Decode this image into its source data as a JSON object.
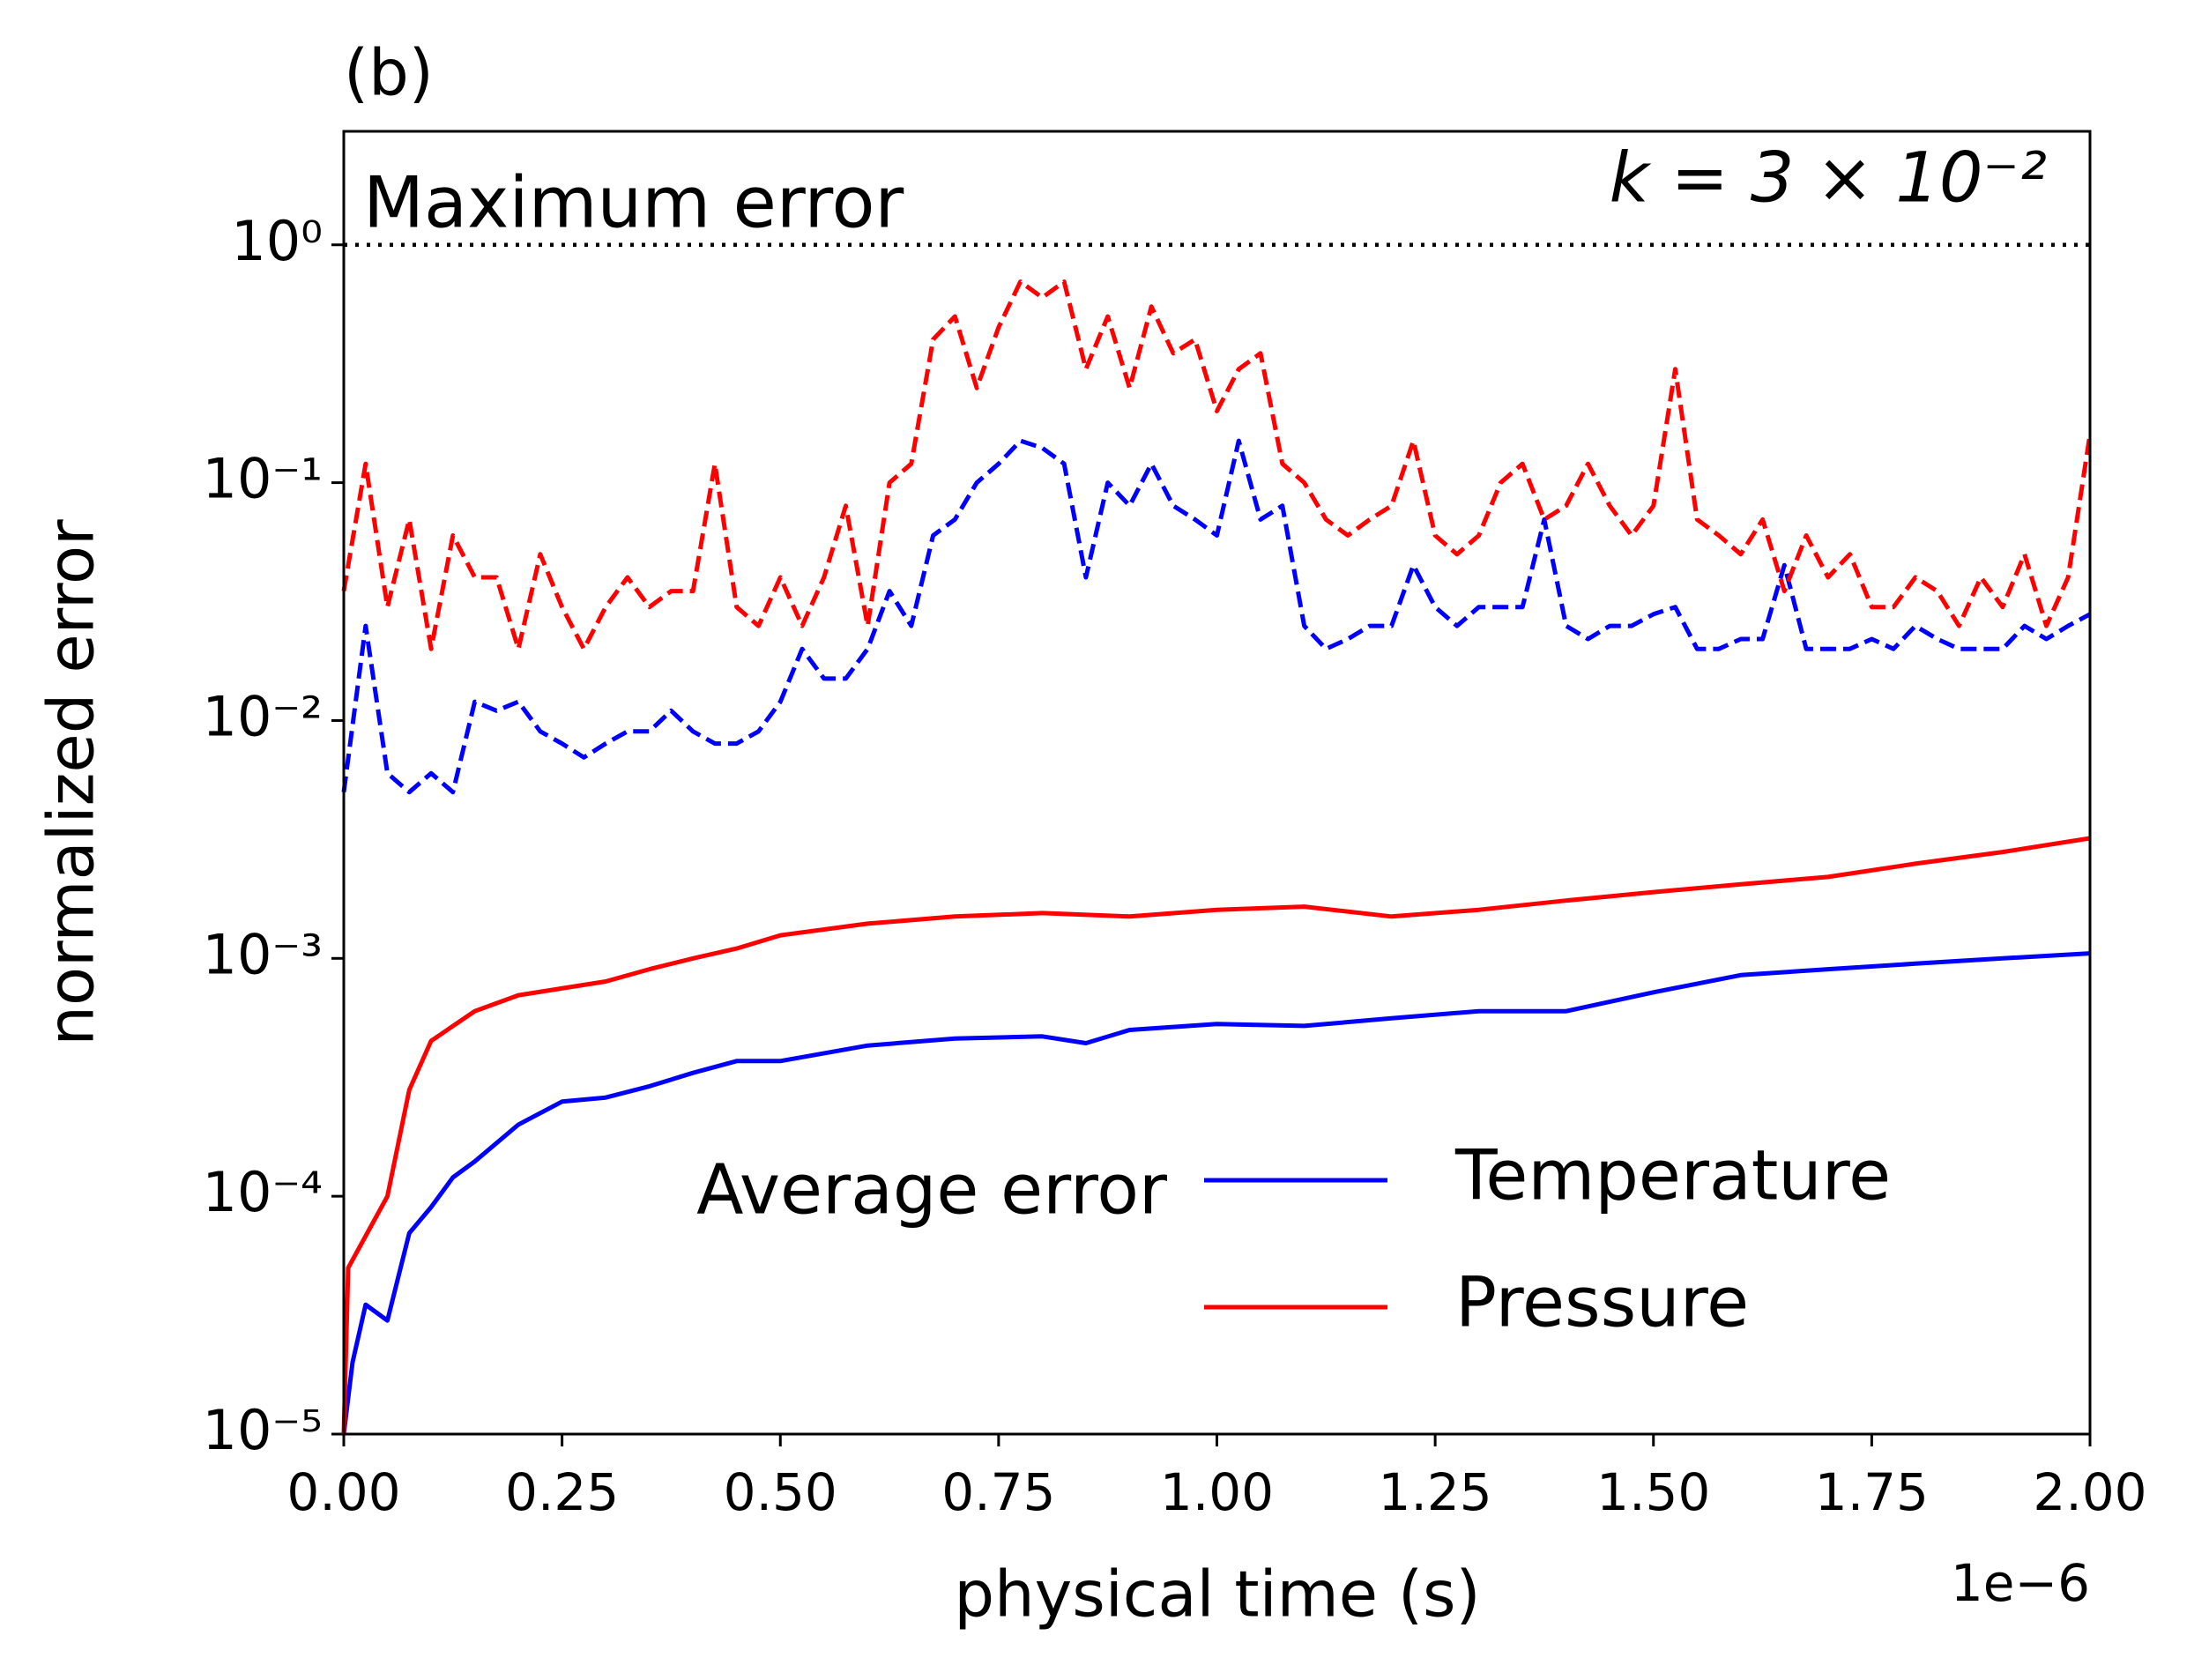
{
  "chart_data": {
    "type": "line",
    "title": "(b)",
    "xlabel": "physical time (s)",
    "ylabel": "normalized error",
    "x_offset_label": "1e−6",
    "annotation": "k = 3 × 10⁻²",
    "reference_line": {
      "value": 1,
      "label": "Maximum error",
      "color": "#000000"
    },
    "legend_title": "Average error",
    "legend_loc": "lower right",
    "yscale": "log",
    "xlim": [
      0,
      2
    ],
    "ylim": [
      1e-05,
      3
    ],
    "xticks": [
      {
        "value": 0,
        "label": "0.00"
      },
      {
        "value": 0.25,
        "label": "0.25"
      },
      {
        "value": 0.5,
        "label": "0.50"
      },
      {
        "value": 0.75,
        "label": "0.75"
      },
      {
        "value": 1,
        "label": "1.00"
      },
      {
        "value": 1.25,
        "label": "1.25"
      },
      {
        "value": 1.5,
        "label": "1.50"
      },
      {
        "value": 1.75,
        "label": "1.75"
      },
      {
        "value": 2,
        "label": "2.00"
      }
    ],
    "yticks": [
      {
        "value": 1e-05,
        "label": "10⁻⁵"
      },
      {
        "value": 0.0001,
        "label": "10⁻⁴"
      },
      {
        "value": 0.001,
        "label": "10⁻³"
      },
      {
        "value": 0.01,
        "label": "10⁻²"
      },
      {
        "value": 0.1,
        "label": "10⁻¹"
      },
      {
        "value": 1,
        "label": "10⁰"
      }
    ],
    "x": [
      0,
      0.025,
      0.05,
      0.075,
      0.1,
      0.125,
      0.15,
      0.175,
      0.2,
      0.225,
      0.25,
      0.275,
      0.3,
      0.325,
      0.35,
      0.375,
      0.4,
      0.425,
      0.45,
      0.475,
      0.5,
      0.525,
      0.55,
      0.575,
      0.6,
      0.625,
      0.65,
      0.675,
      0.7,
      0.725,
      0.75,
      0.775,
      0.8,
      0.825,
      0.85,
      0.875,
      0.9,
      0.925,
      0.95,
      0.975,
      1,
      1.025,
      1.05,
      1.075,
      1.1,
      1.125,
      1.15,
      1.175,
      1.2,
      1.225,
      1.25,
      1.275,
      1.3,
      1.325,
      1.35,
      1.375,
      1.4,
      1.425,
      1.45,
      1.475,
      1.5,
      1.525,
      1.55,
      1.575,
      1.6,
      1.625,
      1.65,
      1.675,
      1.7,
      1.725,
      1.75,
      1.775,
      1.8,
      1.825,
      1.85,
      1.875,
      1.9,
      1.925,
      1.95,
      1.975,
      2
    ],
    "series": [
      {
        "name": "Temperature",
        "color": "#0000ff",
        "x": [
          0,
          0.01,
          0.025,
          0.05,
          0.075,
          0.1,
          0.125,
          0.15,
          0.2,
          0.25,
          0.3,
          0.35,
          0.4,
          0.45,
          0.5,
          0.6,
          0.7,
          0.8,
          0.85,
          0.9,
          1,
          1.1,
          1.2,
          1.3,
          1.4,
          1.5,
          1.6,
          1.7,
          1.8,
          1.9,
          2
        ],
        "values": [
          1e-05,
          2e-05,
          3.5e-05,
          3e-05,
          7e-05,
          9e-05,
          0.00012,
          0.00014,
          0.0002,
          0.00025,
          0.00026,
          0.00029,
          0.00033,
          0.00037,
          0.00037,
          0.00043,
          0.00046,
          0.00047,
          0.00044,
          0.0005,
          0.00053,
          0.00052,
          0.00056,
          0.0006,
          0.0006,
          0.00072,
          0.00085,
          0.0009,
          0.00095,
          0.001,
          0.00105
        ]
      },
      {
        "name": "Pressure",
        "color": "#ff0000",
        "x": [
          0,
          0.005,
          0.05,
          0.075,
          0.1,
          0.15,
          0.2,
          0.3,
          0.35,
          0.4,
          0.45,
          0.5,
          0.6,
          0.7,
          0.8,
          0.9,
          1,
          1.1,
          1.2,
          1.3,
          1.4,
          1.5,
          1.6,
          1.7,
          1.8,
          1.9,
          2
        ],
        "values": [
          1e-05,
          5e-05,
          0.0001,
          0.00028,
          0.00045,
          0.0006,
          0.0007,
          0.0008,
          0.0009,
          0.001,
          0.0011,
          0.00125,
          0.0014,
          0.0015,
          0.00155,
          0.0015,
          0.0016,
          0.00165,
          0.0015,
          0.0016,
          0.00175,
          0.0019,
          0.00205,
          0.0022,
          0.0025,
          0.0028,
          0.0032
        ]
      },
      {
        "color": "#0000ff",
        "dashed": true,
        "values": [
          0.005,
          0.025,
          0.006,
          0.005,
          0.006,
          0.005,
          0.012,
          0.011,
          0.012,
          0.009,
          0.008,
          0.007,
          0.008,
          0.009,
          0.009,
          0.011,
          0.009,
          0.008,
          0.008,
          0.009,
          0.012,
          0.02,
          0.015,
          0.015,
          0.02,
          0.035,
          0.025,
          0.06,
          0.07,
          0.1,
          0.12,
          0.15,
          0.14,
          0.12,
          0.04,
          0.1,
          0.08,
          0.12,
          0.08,
          0.07,
          0.06,
          0.15,
          0.07,
          0.08,
          0.025,
          0.02,
          0.022,
          0.025,
          0.025,
          0.045,
          0.03,
          0.025,
          0.03,
          0.03,
          0.03,
          0.07,
          0.025,
          0.022,
          0.025,
          0.025,
          0.028,
          0.03,
          0.02,
          0.02,
          0.022,
          0.022,
          0.045,
          0.02,
          0.02,
          0.02,
          0.022,
          0.02,
          0.025,
          0.022,
          0.02,
          0.02,
          0.02,
          0.025,
          0.022,
          0.025,
          0.028
        ]
      },
      {
        "color": "#ff0000",
        "dashed": true,
        "values": [
          0.035,
          0.12,
          0.03,
          0.07,
          0.02,
          0.06,
          0.04,
          0.04,
          0.02,
          0.05,
          0.03,
          0.02,
          0.03,
          0.04,
          0.03,
          0.035,
          0.035,
          0.12,
          0.03,
          0.025,
          0.04,
          0.025,
          0.04,
          0.08,
          0.025,
          0.1,
          0.12,
          0.4,
          0.5,
          0.25,
          0.45,
          0.7,
          0.6,
          0.7,
          0.3,
          0.5,
          0.25,
          0.55,
          0.35,
          0.4,
          0.2,
          0.3,
          0.35,
          0.12,
          0.1,
          0.07,
          0.06,
          0.07,
          0.08,
          0.15,
          0.06,
          0.05,
          0.06,
          0.1,
          0.12,
          0.07,
          0.08,
          0.12,
          0.08,
          0.06,
          0.08,
          0.3,
          0.07,
          0.06,
          0.05,
          0.07,
          0.035,
          0.06,
          0.04,
          0.05,
          0.03,
          0.03,
          0.04,
          0.035,
          0.025,
          0.04,
          0.03,
          0.05,
          0.025,
          0.04,
          0.16
        ]
      }
    ]
  }
}
